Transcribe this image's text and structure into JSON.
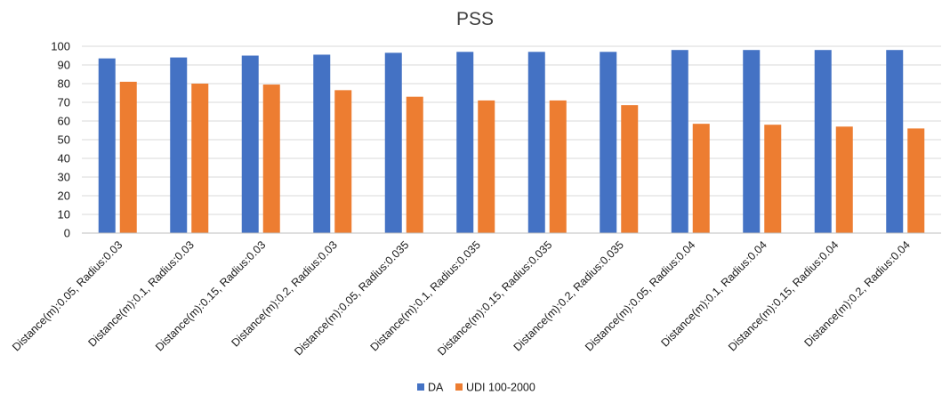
{
  "chart_data": {
    "type": "bar",
    "title": "PSS",
    "xlabel": "",
    "ylabel": "",
    "ylim": [
      0,
      100
    ],
    "yticks": [
      0,
      10,
      20,
      30,
      40,
      50,
      60,
      70,
      80,
      90,
      100
    ],
    "grid": true,
    "legend_position": "bottom",
    "categories": [
      "Distance(m):0.05, Radius:0.03",
      "Distance(m):0.1, Radius:0.03",
      "Distance(m):0.15, Radius:0.03",
      "Distance(m):0.2, Radius:0.03",
      "Distance(m):0.05, Radius:0.035",
      "Distance(m):0.1, Radius:0.035",
      "Distance(m):0.15, Radius:0.035",
      "Distance(m):0.2, Radius:0.035",
      "Distance(m):0.05, Radius:0.04",
      "Distance(m):0.1, Radius:0.04",
      "Distance(m):0.15, Radius:0.04",
      "Distance(m):0.2, Radius:0.04"
    ],
    "series": [
      {
        "name": "DA",
        "color": "#4472C4",
        "values": [
          93.5,
          94,
          95,
          95.5,
          96.5,
          97,
          97,
          97,
          98,
          98,
          98,
          98
        ]
      },
      {
        "name": "UDI 100-2000",
        "color": "#ED7D31",
        "values": [
          81,
          80,
          79.5,
          76.5,
          73,
          71,
          71,
          68.5,
          58.5,
          58,
          57,
          56
        ]
      }
    ]
  }
}
